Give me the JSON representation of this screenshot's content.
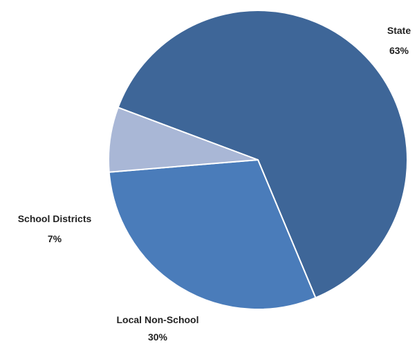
{
  "chart_data": {
    "type": "pie",
    "categories": [
      "State",
      "Local Non-School",
      "School Districts"
    ],
    "values": [
      63,
      30,
      7
    ],
    "percent_labels": [
      "63%",
      "30%",
      "7%"
    ],
    "colors": [
      "#3e6698",
      "#4a7cba",
      "#a9b7d6"
    ],
    "title": "",
    "start_angle_deg": -159.5,
    "direction": "clockwise",
    "slice_border_color": "#ffffff",
    "legend": "none"
  }
}
